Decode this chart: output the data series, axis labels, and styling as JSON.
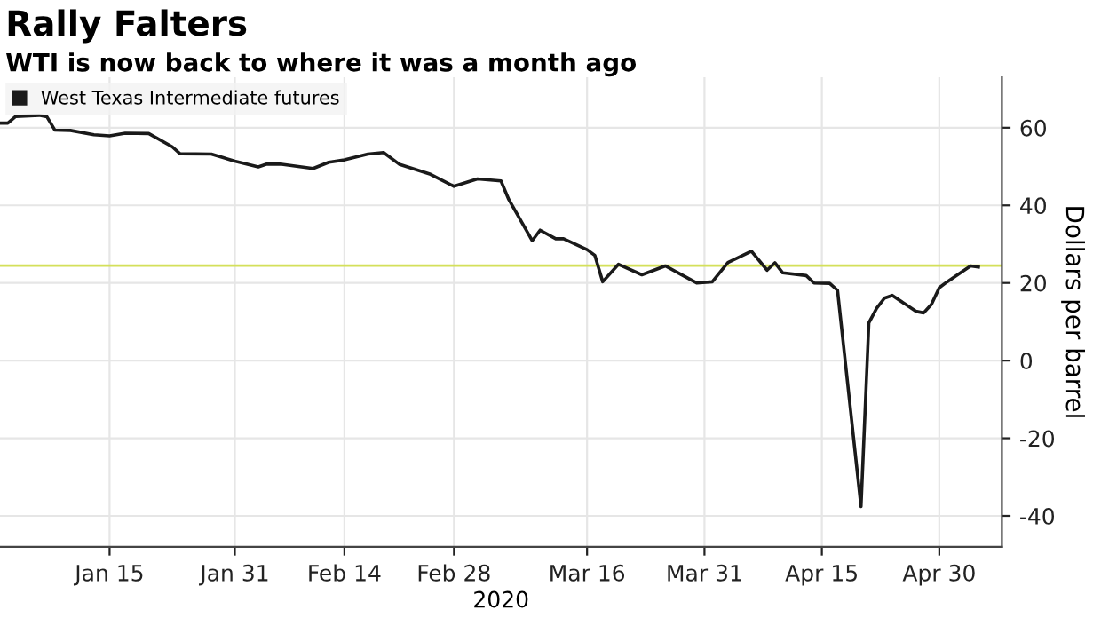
{
  "chart_data": {
    "type": "line",
    "title": "Rally Falters",
    "subtitle": "WTI is now back to where it was a month ago",
    "xlabel": "2020",
    "ylabel": "Dollars per barrel",
    "x": [
      "2020-01-01",
      "2020-01-02",
      "2020-01-03",
      "2020-01-06",
      "2020-01-07",
      "2020-01-08",
      "2020-01-10",
      "2020-01-13",
      "2020-01-15",
      "2020-01-17",
      "2020-01-20",
      "2020-01-23",
      "2020-01-24",
      "2020-01-28",
      "2020-01-31",
      "2020-02-03",
      "2020-02-04",
      "2020-02-06",
      "2020-02-10",
      "2020-02-12",
      "2020-02-14",
      "2020-02-17",
      "2020-02-19",
      "2020-02-21",
      "2020-02-25",
      "2020-02-28",
      "2020-03-02",
      "2020-03-05",
      "2020-03-06",
      "2020-03-09",
      "2020-03-10",
      "2020-03-12",
      "2020-03-13",
      "2020-03-16",
      "2020-03-17",
      "2020-03-18",
      "2020-03-20",
      "2020-03-23",
      "2020-03-26",
      "2020-03-30",
      "2020-04-01",
      "2020-04-03",
      "2020-04-06",
      "2020-04-08",
      "2020-04-09",
      "2020-04-10",
      "2020-04-13",
      "2020-04-14",
      "2020-04-16",
      "2020-04-17",
      "2020-04-20",
      "2020-04-21",
      "2020-04-22",
      "2020-04-23",
      "2020-04-24",
      "2020-04-27",
      "2020-04-28",
      "2020-04-29",
      "2020-04-30",
      "2020-05-01",
      "2020-05-04",
      "2020-05-05"
    ],
    "series": [
      {
        "name": "West Texas Intermediate futures",
        "color": "#1a1a1a",
        "values": [
          61.2,
          61.2,
          62.9,
          63.2,
          62.8,
          59.4,
          59.3,
          58.2,
          57.9,
          58.6,
          58.5,
          55.1,
          53.3,
          53.2,
          51.4,
          49.9,
          50.6,
          50.6,
          49.5,
          51.1,
          51.7,
          53.2,
          53.6,
          50.6,
          48.0,
          44.9,
          46.8,
          46.3,
          41.5,
          30.9,
          33.6,
          31.4,
          31.4,
          28.6,
          27.1,
          20.3,
          24.8,
          22.1,
          24.4,
          20.0,
          20.3,
          25.3,
          28.2,
          23.3,
          25.2,
          22.6,
          21.9,
          20.0,
          19.9,
          18.1,
          -37.6,
          9.7,
          13.5,
          16.1,
          16.8,
          12.7,
          12.3,
          14.5,
          18.8,
          20.3,
          24.4,
          24.1
        ]
      }
    ],
    "xlim": [
      "2020-01-01",
      "2020-05-08"
    ],
    "xticks": [
      {
        "value": "2020-01-15",
        "label": "Jan 15"
      },
      {
        "value": "2020-01-31",
        "label": "Jan 31"
      },
      {
        "value": "2020-02-14",
        "label": "Feb 14"
      },
      {
        "value": "2020-02-28",
        "label": "Feb 28"
      },
      {
        "value": "2020-03-16",
        "label": "Mar 16"
      },
      {
        "value": "2020-03-31",
        "label": "Mar 31"
      },
      {
        "value": "2020-04-15",
        "label": "Apr 15"
      },
      {
        "value": "2020-04-30",
        "label": "Apr 30"
      }
    ],
    "ylim": [
      -48,
      73
    ],
    "yticks": [
      -40,
      -20,
      0,
      20,
      40,
      60
    ],
    "ref_lines": [
      {
        "axis": "y",
        "value": 24.5,
        "color": "#d4e05a"
      }
    ],
    "grid": true,
    "legend": "top left",
    "marker": "none",
    "line_style": "solid"
  }
}
